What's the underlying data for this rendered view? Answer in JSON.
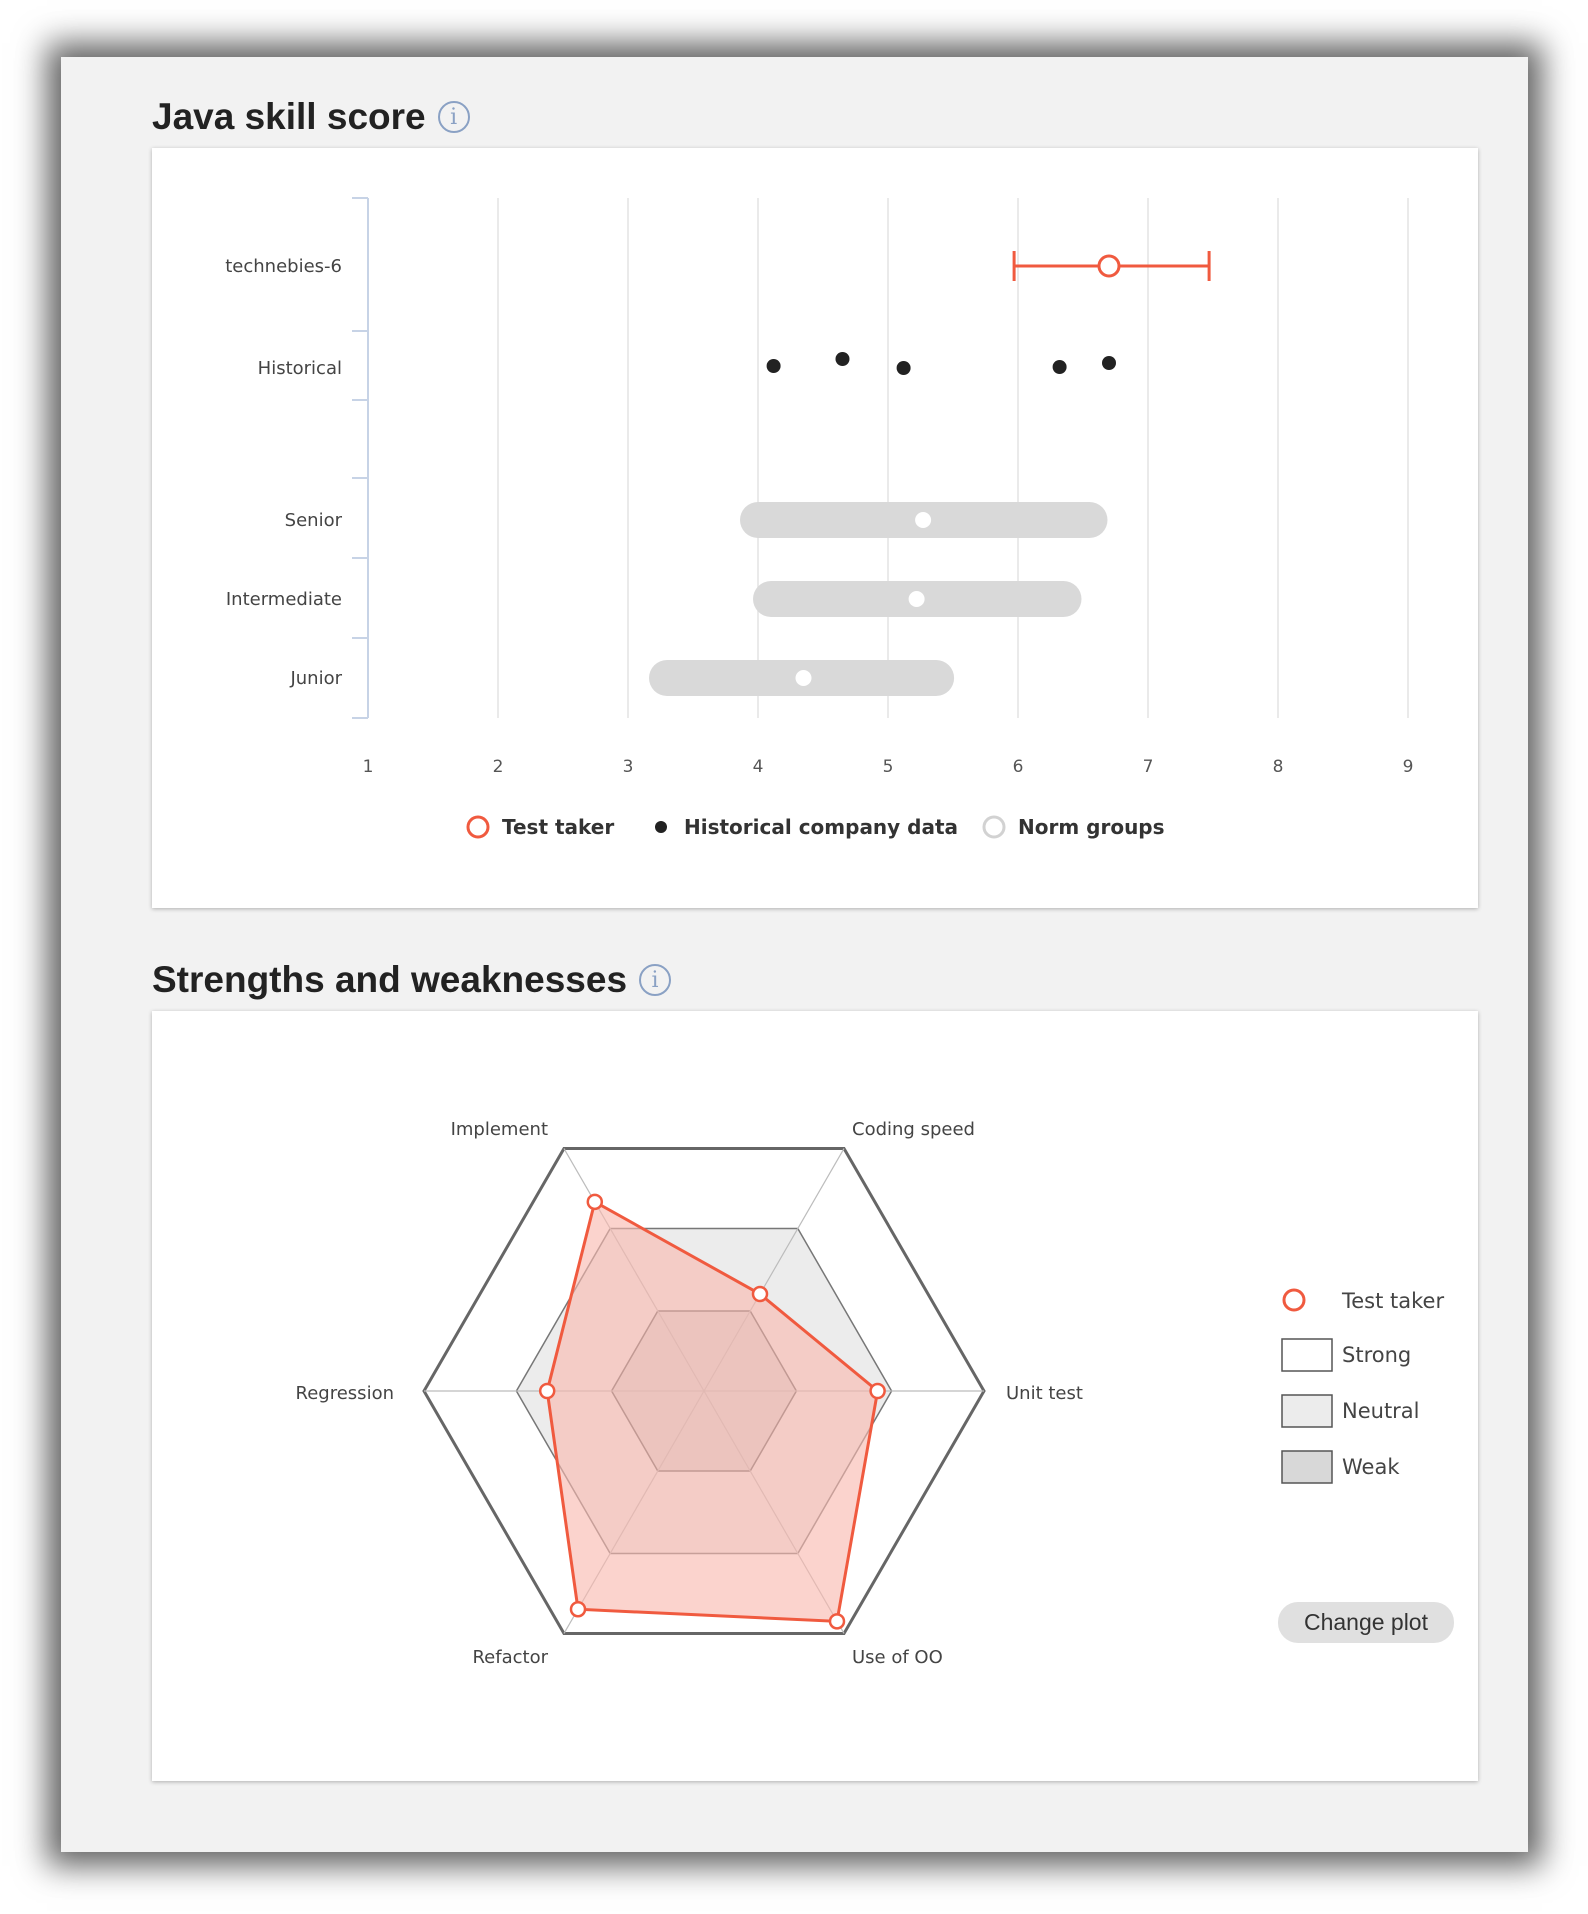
{
  "sections": {
    "skill_score": {
      "title": "Java skill score"
    },
    "strengths": {
      "title": "Strengths and weaknesses"
    }
  },
  "icons": {
    "info": "info-icon"
  },
  "colors": {
    "accent": "#f05a3f",
    "dot": "#222222",
    "norm_bar": "#d9d9d9",
    "radar_fill": "#f8b8ae",
    "neutral_band": "#ececec",
    "weak_band": "#d8d8d8"
  },
  "chart_data": [
    {
      "type": "scatter",
      "xlim": [
        1,
        9
      ],
      "x_ticks": [
        "1",
        "2",
        "3",
        "4",
        "5",
        "6",
        "7",
        "8",
        "9"
      ],
      "rows": [
        "technebies-6",
        "Historical",
        "Senior",
        "Intermediate",
        "Junior"
      ],
      "test_taker": {
        "row": "technebies-6",
        "value": 6.7,
        "low": 5.97,
        "high": 7.47
      },
      "historical": {
        "row": "Historical",
        "values": [
          4.12,
          4.65,
          5.12,
          6.32,
          6.7
        ]
      },
      "norm_groups": [
        {
          "row": "Senior",
          "low": 4.0,
          "high": 6.55,
          "mean": 5.27
        },
        {
          "row": "Intermediate",
          "low": 4.1,
          "high": 6.35,
          "mean": 5.22
        },
        {
          "row": "Junior",
          "low": 3.3,
          "high": 5.37,
          "mean": 4.35
        }
      ],
      "legend": [
        "Test taker",
        "Historical company data",
        "Norm groups"
      ],
      "legend_position": "bottom"
    },
    {
      "type": "radar",
      "axes": [
        "Coding speed",
        "Unit test",
        "Use of OO",
        "Refactor",
        "Regression",
        "Implement"
      ],
      "max": 1.0,
      "bands": {
        "weak": 0.33,
        "neutral": 0.67,
        "strong": 1.0
      },
      "test_taker": [
        0.4,
        0.62,
        0.95,
        0.9,
        0.56,
        0.78
      ],
      "legend": [
        "Test taker",
        "Strong",
        "Neutral",
        "Weak"
      ],
      "legend_position": "right"
    }
  ],
  "buttons": {
    "change_plot": "Change plot"
  }
}
